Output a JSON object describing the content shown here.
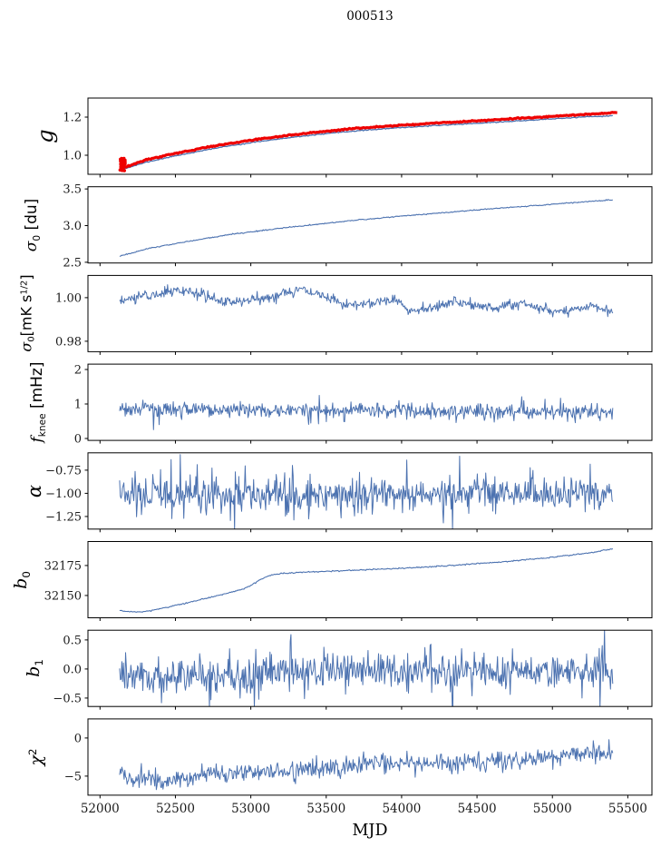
{
  "title": "000513",
  "xlabel": "MJD",
  "colors": {
    "line_blue": "#4c72b0",
    "line_red": "#ee0000",
    "axis": "#000000",
    "text": "#1a1a1a"
  },
  "chart_data": {
    "type": "line",
    "title": "000513",
    "xlabel": "MJD",
    "grid": false,
    "legend": "none",
    "x_range": [
      51920,
      55660
    ],
    "xticks": [
      52000,
      52500,
      53000,
      53500,
      54000,
      54500,
      55000,
      55500
    ],
    "xtick_labels": [
      "52000",
      "52500",
      "53000",
      "53500",
      "54000",
      "54500",
      "55000",
      "55500"
    ],
    "panels": [
      {
        "id": "g",
        "ylabel_text": "g",
        "ylabel_segments": [
          {
            "t": "g",
            "it": true
          }
        ],
        "ylabel_fontsize": 24,
        "ylabel_x": 50,
        "ylim": [
          0.9,
          1.3
        ],
        "yticks": [
          {
            "v": 1.2,
            "label": "1.2"
          },
          {
            "v": 1.0,
            "label": "1.0"
          }
        ],
        "series": [
          {
            "name": "gain-raw-blue",
            "color": "#4c72b0",
            "width": 1.3,
            "noise": 0.0012,
            "n": 420,
            "seed": 11,
            "trend": [
              [
                52130,
                0.921
              ],
              [
                52300,
                0.962
              ],
              [
                52500,
                0.997
              ],
              [
                52800,
                1.042
              ],
              [
                53100,
                1.077
              ],
              [
                53400,
                1.105
              ],
              [
                53700,
                1.128
              ],
              [
                54000,
                1.145
              ],
              [
                54300,
                1.159
              ],
              [
                54600,
                1.172
              ],
              [
                54900,
                1.186
              ],
              [
                55200,
                1.2
              ],
              [
                55400,
                1.207
              ]
            ]
          },
          {
            "name": "gain-calibrated-red",
            "color": "#ee0000",
            "width": 3.2,
            "noise": 0.0015,
            "n": 420,
            "seed": 12,
            "trend": [
              [
                52150,
                0.932
              ],
              [
                52300,
                0.975
              ],
              [
                52500,
                1.01
              ],
              [
                52800,
                1.055
              ],
              [
                53100,
                1.09
              ],
              [
                53400,
                1.118
              ],
              [
                53700,
                1.141
              ],
              [
                54000,
                1.158
              ],
              [
                54300,
                1.172
              ],
              [
                54600,
                1.185
              ],
              [
                54900,
                1.199
              ],
              [
                55200,
                1.213
              ],
              [
                55430,
                1.224
              ]
            ],
            "start_scatter": {
              "x": 52150,
              "xjitter": 18,
              "ymin": 0.918,
              "ymax": 0.985,
              "count": 45,
              "seed": 7,
              "r": 1.7
            }
          }
        ]
      },
      {
        "id": "sigma0-du",
        "ylabel_text": "σ₀ [du]",
        "ylabel_segments": [
          {
            "t": "σ",
            "it": true
          },
          {
            "t": "0",
            "sub": true
          },
          {
            "t": " [du]"
          }
        ],
        "ylabel_fontsize": 17,
        "ylabel_x": 36,
        "ylim": [
          2.49,
          3.53
        ],
        "yticks": [
          {
            "v": 3.5,
            "label": "3.5"
          },
          {
            "v": 3.0,
            "label": "3.0"
          },
          {
            "v": 2.5,
            "label": "2.5"
          }
        ],
        "series": [
          {
            "name": "sigma0-du-line",
            "color": "#4c72b0",
            "width": 1.1,
            "noise": 0.004,
            "n": 520,
            "seed": 21,
            "trend": [
              [
                52130,
                2.585
              ],
              [
                52350,
                2.7
              ],
              [
                52600,
                2.79
              ],
              [
                52850,
                2.875
              ],
              [
                53100,
                2.94
              ],
              [
                53400,
                3.01
              ],
              [
                53700,
                3.075
              ],
              [
                54000,
                3.13
              ],
              [
                54300,
                3.18
              ],
              [
                54600,
                3.23
              ],
              [
                54900,
                3.275
              ],
              [
                55150,
                3.315
              ],
              [
                55400,
                3.35
              ]
            ]
          }
        ]
      },
      {
        "id": "sigma0-mks",
        "ylabel_text": "σ₀ [mK s^1/2]",
        "ylabel_segments": [
          {
            "t": "σ",
            "it": true
          },
          {
            "t": "0",
            "sub": true
          },
          {
            "t": "[mK s"
          },
          {
            "t": "1/2",
            "sup": true
          },
          {
            "t": "]"
          }
        ],
        "ylabel_fontsize": 16,
        "ylabel_x": 30,
        "ylim": [
          0.9752,
          1.0102
        ],
        "yticks": [
          {
            "v": 1.0,
            "label": "1.00"
          },
          {
            "v": 0.98,
            "label": "0.98"
          }
        ],
        "series": [
          {
            "name": "sigma0-mks-line",
            "color": "#4c72b0",
            "width": 1.0,
            "noise": 0.0012,
            "n": 700,
            "seed": 31,
            "trend": [
              [
                52130,
                0.998
              ],
              [
                52250,
                1.0005
              ],
              [
                52400,
                1.002
              ],
              [
                52550,
                1.0035
              ],
              [
                52650,
                1.002
              ],
              [
                52800,
                0.998
              ],
              [
                52950,
                0.9985
              ],
              [
                53100,
                0.9995
              ],
              [
                53250,
                1.003
              ],
              [
                53350,
                1.0035
              ],
              [
                53500,
                1.0
              ],
              [
                53650,
                0.9965
              ],
              [
                53800,
                0.998
              ],
              [
                53950,
                0.9995
              ],
              [
                54050,
                0.994
              ],
              [
                54200,
                0.9955
              ],
              [
                54350,
                0.9985
              ],
              [
                54500,
                0.996
              ],
              [
                54650,
                0.9955
              ],
              [
                54800,
                0.9975
              ],
              [
                54950,
                0.9945
              ],
              [
                55100,
                0.9935
              ],
              [
                55250,
                0.997
              ],
              [
                55330,
                0.9955
              ],
              [
                55400,
                0.9925
              ]
            ]
          }
        ]
      },
      {
        "id": "fknee",
        "ylabel_text": "f_knee [mHz]",
        "ylabel_segments": [
          {
            "t": "f",
            "it": true
          },
          {
            "t": "knee",
            "sub": true
          },
          {
            "t": " [mHz]"
          }
        ],
        "ylabel_fontsize": 17,
        "ylabel_x": 42,
        "ylim": [
          -0.055,
          2.155
        ],
        "yticks": [
          {
            "v": 2,
            "label": "2"
          },
          {
            "v": 1,
            "label": "1"
          },
          {
            "v": 0,
            "label": "0"
          }
        ],
        "series": [
          {
            "name": "fknee-line",
            "color": "#4c72b0",
            "width": 1.0,
            "noise": 0.11,
            "spike_prob": 0.05,
            "spike_mult": 2.0,
            "n": 700,
            "seed": 41,
            "trend": [
              [
                52130,
                0.86
              ],
              [
                53000,
                0.82
              ],
              [
                54000,
                0.8
              ],
              [
                55400,
                0.76
              ]
            ]
          }
        ]
      },
      {
        "id": "alpha",
        "ylabel_text": "α",
        "ylabel_segments": [
          {
            "t": "α",
            "it": true
          }
        ],
        "ylabel_fontsize": 21,
        "ylabel_x": 38,
        "ylim": [
          -1.386,
          -0.563
        ],
        "yticks": [
          {
            "v": -0.75,
            "label": "−0.75"
          },
          {
            "v": -1.0,
            "label": "−1.00"
          },
          {
            "v": -1.25,
            "label": "−1.25"
          }
        ],
        "series": [
          {
            "name": "alpha-line",
            "color": "#4c72b0",
            "width": 1.0,
            "noise": 0.085,
            "spike_prob": 0.05,
            "spike_mult": 1.9,
            "n": 700,
            "seed": 51,
            "trend": [
              [
                52130,
                -1.01
              ],
              [
                53500,
                -1.02
              ],
              [
                55400,
                -1.0
              ]
            ]
          }
        ]
      },
      {
        "id": "b0",
        "ylabel_text": "b₀",
        "ylabel_segments": [
          {
            "t": "b",
            "it": true
          },
          {
            "t": "0",
            "sub": true
          }
        ],
        "ylabel_fontsize": 19,
        "ylabel_x": 24,
        "ylim": [
          32131.4,
          32195
        ],
        "yticks": [
          {
            "v": 32175,
            "label": "32175"
          },
          {
            "v": 32150,
            "label": "32150"
          }
        ],
        "series": [
          {
            "name": "b0-line",
            "color": "#4c72b0",
            "width": 1.1,
            "noise": 0.25,
            "n": 520,
            "seed": 61,
            "trend": [
              [
                52130,
                32137.6
              ],
              [
                52200,
                32136.4
              ],
              [
                52280,
                32136.2
              ],
              [
                52400,
                32139
              ],
              [
                52600,
                32144.5
              ],
              [
                52800,
                32150.5
              ],
              [
                52950,
                32155.5
              ],
              [
                53000,
                32158.5
              ],
              [
                53060,
                32163
              ],
              [
                53120,
                32166.5
              ],
              [
                53200,
                32168.3
              ],
              [
                53350,
                32169.4
              ],
              [
                53550,
                32170.3
              ],
              [
                53750,
                32171.3
              ],
              [
                53950,
                32172.4
              ],
              [
                54150,
                32173.6
              ],
              [
                54350,
                32175.2
              ],
              [
                54550,
                32177
              ],
              [
                54750,
                32179
              ],
              [
                54950,
                32181.2
              ],
              [
                55150,
                32184
              ],
              [
                55300,
                32186.5
              ],
              [
                55400,
                32189
              ]
            ]
          }
        ]
      },
      {
        "id": "b1",
        "ylabel_text": "b₁",
        "ylabel_segments": [
          {
            "t": "b",
            "it": true
          },
          {
            "t": "1",
            "sub": true
          }
        ],
        "ylabel_fontsize": 19,
        "ylabel_x": 38,
        "ylim": [
          -0.645,
          0.667
        ],
        "yticks": [
          {
            "v": 0.5,
            "label": "0.5"
          },
          {
            "v": 0.0,
            "label": "0.0"
          },
          {
            "v": -0.5,
            "label": "−0.5"
          }
        ],
        "series": [
          {
            "name": "b1-line",
            "color": "#4c72b0",
            "width": 1.0,
            "noise": 0.15,
            "spike_prob": 0.04,
            "spike_mult": 2.0,
            "n": 660,
            "seed": 71,
            "trend": [
              [
                52130,
                -0.05
              ],
              [
                52350,
                -0.13
              ],
              [
                52700,
                -0.12
              ],
              [
                53000,
                -0.1
              ],
              [
                53200,
                -0.02
              ],
              [
                53600,
                -0.03
              ],
              [
                54000,
                -0.02
              ],
              [
                54500,
                -0.04
              ],
              [
                55000,
                -0.02
              ],
              [
                55400,
                -0.05
              ]
            ]
          }
        ]
      },
      {
        "id": "chi2",
        "ylabel_text": "χ²",
        "ylabel_segments": [
          {
            "t": "χ",
            "it": true
          },
          {
            "t": "2",
            "sup": true
          }
        ],
        "ylabel_fontsize": 19,
        "ylabel_x": 40,
        "ylim": [
          -7.5,
          2.5
        ],
        "yticks": [
          {
            "v": 0,
            "label": "0"
          },
          {
            "v": -5,
            "label": "−5"
          }
        ],
        "series": [
          {
            "name": "chi2-line",
            "color": "#4c72b0",
            "width": 1.0,
            "noise": 0.6,
            "spike_prob": 0.04,
            "spike_mult": 1.8,
            "n": 660,
            "seed": 81,
            "trend": [
              [
                52130,
                -4.7
              ],
              [
                52280,
                -5.5
              ],
              [
                52400,
                -5.7
              ],
              [
                52550,
                -5.2
              ],
              [
                52750,
                -4.7
              ],
              [
                53000,
                -4.6
              ],
              [
                53300,
                -4.1
              ],
              [
                53600,
                -3.8
              ],
              [
                53900,
                -3.4
              ],
              [
                54200,
                -3.3
              ],
              [
                54500,
                -3.1
              ],
              [
                54800,
                -2.9
              ],
              [
                55000,
                -2.5
              ],
              [
                55200,
                -2.2
              ],
              [
                55400,
                -2.1
              ]
            ]
          }
        ]
      }
    ]
  }
}
